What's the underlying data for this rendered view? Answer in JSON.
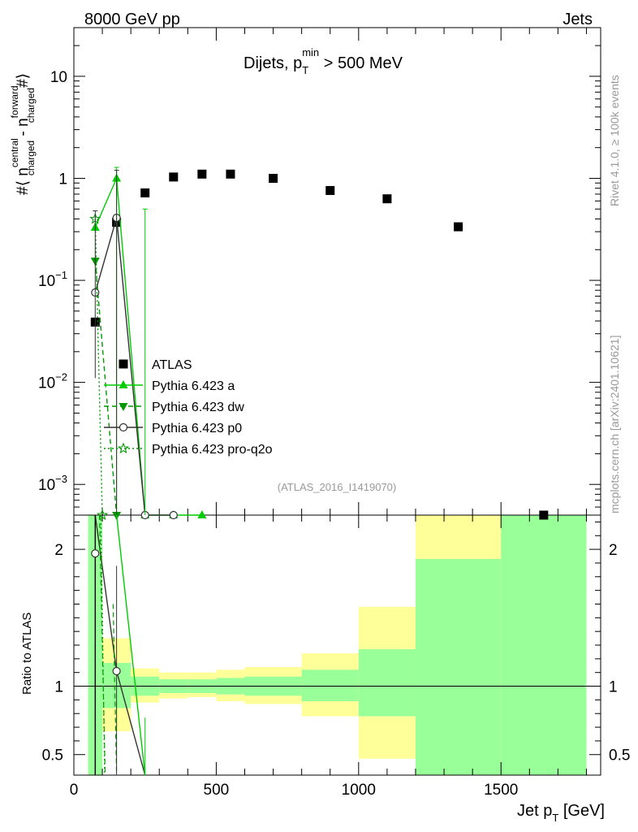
{
  "header": {
    "energy_label": "8000 GeV pp",
    "process_label": "Jets",
    "side_label_top": "Rivet 4.1.0, ≥ 100k events",
    "side_label_bottom": "mcplots.cern.ch [arXiv:2401.10621]",
    "analysis_id": "(ATLAS_2016_I1419070)"
  },
  "chart_data": [
    {
      "type": "scatter",
      "panel": "main",
      "title": "Dijets, p_T^min > 500 MeV",
      "title_parts": {
        "prefix": "Dijets, p",
        "sub": "T",
        "sup": "min",
        "suffix": " > 500 MeV"
      },
      "ylabel": "#⟨ n_charged^central - n_charged^forward #⟩",
      "ylabel_parts": {
        "p1": "#⟨ n",
        "sup1": "central",
        "sub1": "charged",
        "p2": " - n",
        "sup2": "forward",
        "sub2": "charged",
        "p3": "#⟩"
      },
      "xlabel": "Jet p_T [GeV]",
      "xlabel_parts": {
        "prefix": "Jet p",
        "sub": "T",
        "suffix": " [GeV]"
      },
      "xlim": [
        0,
        1850
      ],
      "ylim": [
        0.0005,
        30
      ],
      "yscale": "log",
      "x_ticks": [
        0,
        500,
        1000,
        1500
      ],
      "x_tick_labels": [
        "0",
        "500",
        "1000",
        "1500"
      ],
      "y_ticks": [
        0.001,
        0.01,
        0.1,
        1,
        10
      ],
      "y_tick_labels": [
        {
          "base": "10",
          "exp": "−3"
        },
        {
          "base": "10",
          "exp": "−2"
        },
        {
          "base": "10",
          "exp": "−1"
        },
        {
          "base": "1",
          "exp": ""
        },
        {
          "base": "10",
          "exp": ""
        }
      ],
      "series": [
        {
          "name": "ATLAS",
          "marker": "square",
          "color": "#000000",
          "x": [
            75,
            150,
            250,
            350,
            450,
            550,
            700,
            900,
            1100,
            1350,
            1650
          ],
          "y": [
            0.039,
            0.37,
            0.72,
            1.03,
            1.1,
            1.1,
            1.0,
            0.76,
            0.63,
            0.335,
            0.0005
          ]
        },
        {
          "name": "Pythia 6.423 a",
          "marker": "triangle-up",
          "color": "#00cc00",
          "line": "solid",
          "x": [
            75,
            150,
            250,
            350,
            450
          ],
          "y": [
            0.33,
            1.0,
            0.0005,
            0.0005,
            0.0005
          ]
        },
        {
          "name": "Pythia 6.423 dw",
          "marker": "triangle-down",
          "color": "#009900",
          "line": "dashed",
          "x": [
            75,
            150
          ],
          "y": [
            0.155,
            0.0005
          ]
        },
        {
          "name": "Pythia 6.423 p0",
          "marker": "circle-open",
          "color": "#333333",
          "line": "solid",
          "x": [
            75,
            150,
            250,
            350
          ],
          "y": [
            0.076,
            0.41,
            0.0005,
            0.0005
          ]
        },
        {
          "name": "Pythia 6.423 pro-q2o",
          "marker": "star-open",
          "color": "#009900",
          "line": "dotted",
          "x": [
            75,
            100
          ],
          "y": [
            0.4,
            0.0005
          ]
        }
      ]
    },
    {
      "type": "ratio",
      "panel": "ratio",
      "ylabel": "Ratio to ATLAS",
      "ylim": [
        0.35,
        2.25
      ],
      "y_ticks": [
        0.5,
        1,
        2
      ],
      "y_tick_labels": [
        "0.5",
        "1",
        "2"
      ],
      "reference": 1,
      "bands": [
        {
          "x0": 50,
          "x1": 100,
          "y_lo": 0.35,
          "y_hi": 2.25,
          "y_lo_inner": 0.35,
          "y_hi_inner": 2.25
        },
        {
          "x0": 100,
          "x1": 200,
          "y_lo": 0.67,
          "y_hi": 1.35,
          "y_lo_inner": 0.84,
          "y_hi_inner": 1.17
        },
        {
          "x0": 200,
          "x1": 300,
          "y_lo": 0.88,
          "y_hi": 1.13,
          "y_lo_inner": 0.93,
          "y_hi_inner": 1.07
        },
        {
          "x0": 300,
          "x1": 400,
          "y_lo": 0.91,
          "y_hi": 1.1,
          "y_lo_inner": 0.95,
          "y_hi_inner": 1.05
        },
        {
          "x0": 400,
          "x1": 500,
          "y_lo": 0.92,
          "y_hi": 1.1,
          "y_lo_inner": 0.95,
          "y_hi_inner": 1.05
        },
        {
          "x0": 500,
          "x1": 600,
          "y_lo": 0.89,
          "y_hi": 1.12,
          "y_lo_inner": 0.94,
          "y_hi_inner": 1.06
        },
        {
          "x0": 600,
          "x1": 800,
          "y_lo": 0.87,
          "y_hi": 1.14,
          "y_lo_inner": 0.93,
          "y_hi_inner": 1.07
        },
        {
          "x0": 800,
          "x1": 1000,
          "y_lo": 0.78,
          "y_hi": 1.24,
          "y_lo_inner": 0.89,
          "y_hi_inner": 1.12
        },
        {
          "x0": 1000,
          "x1": 1200,
          "y_lo": 0.47,
          "y_hi": 1.58,
          "y_lo_inner": 0.78,
          "y_hi_inner": 1.27
        },
        {
          "x0": 1200,
          "x1": 1500,
          "y_lo": 0.35,
          "y_hi": 2.25,
          "y_lo_inner": 0.35,
          "y_hi_inner": 1.93
        },
        {
          "x0": 1500,
          "x1": 1800,
          "y_lo": 0.35,
          "y_hi": 2.25,
          "y_lo_inner": 0.35,
          "y_hi_inner": 2.25
        }
      ],
      "band_colors": {
        "outer": "#ffff99",
        "inner": "#99ff99"
      },
      "series": [
        {
          "name": "Pythia 6.423 p0",
          "marker": "circle-open",
          "color": "#333333",
          "x": [
            75,
            150
          ],
          "y": [
            1.97,
            1.11
          ]
        }
      ]
    }
  ]
}
